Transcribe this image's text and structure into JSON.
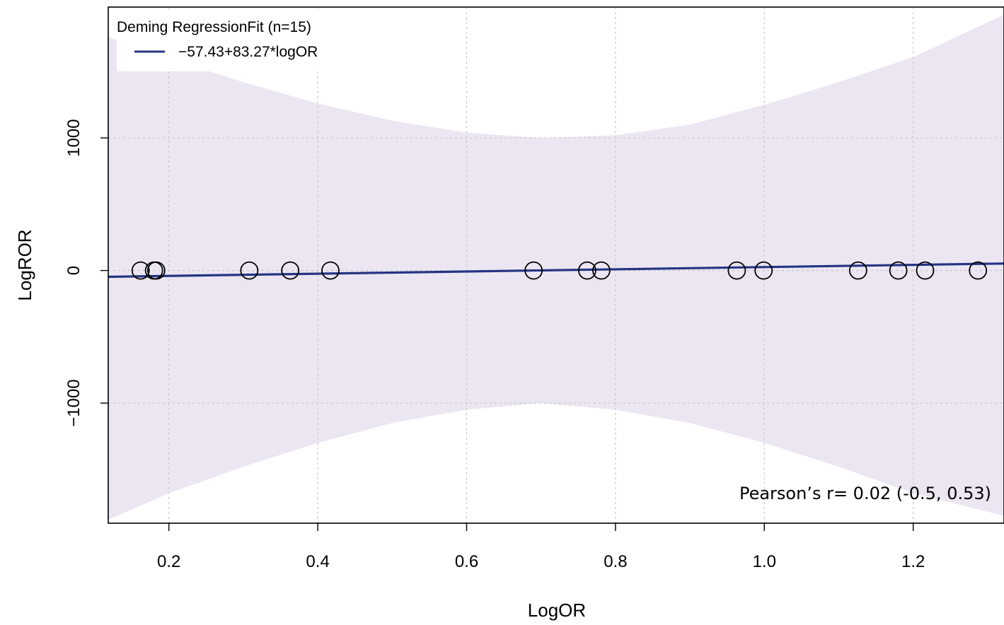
{
  "chart_data": {
    "type": "scatter",
    "xlabel": "LogOR",
    "ylabel": "LogROR",
    "xlim": [
      0.1185,
      1.322
    ],
    "ylim": [
      -1906,
      1987
    ],
    "xticks": [
      0.2,
      0.4,
      0.6,
      0.8,
      1.0,
      1.2
    ],
    "xtick_labels": [
      "0.2",
      "0.4",
      "0.6",
      "0.8",
      "1.0",
      "1.2"
    ],
    "yticks": [
      -1000,
      0,
      1000
    ],
    "ytick_labels": [
      "−1000",
      "0",
      "1000"
    ],
    "grid": true,
    "legend_position": "top-left",
    "legend": {
      "title": "Deming RegressionFit (n=15)",
      "entries": [
        {
          "label": "−57.43+83.27*logOR",
          "color": "#253583"
        }
      ]
    },
    "annotation": "Pearson’s r= 0.02 (-0.5, 0.53)",
    "points": {
      "x": [
        0.162,
        0.18,
        0.183,
        0.308,
        0.363,
        0.417,
        0.69,
        0.762,
        0.781,
        0.963,
        0.999,
        1.126,
        1.18,
        1.216,
        1.287
      ],
      "y": [
        0,
        0,
        0,
        0,
        0,
        0,
        0,
        0,
        0,
        0,
        0,
        0,
        0,
        0,
        0
      ]
    },
    "fit_line": {
      "intercept": -57.43,
      "slope": 83.27
    },
    "confidence_band": {
      "x": [
        0.1185,
        0.2,
        0.3,
        0.4,
        0.5,
        0.6,
        0.7,
        0.8,
        0.9,
        1.0,
        1.1,
        1.2,
        1.322
      ],
      "upper": [
        1760,
        1600,
        1420,
        1260,
        1130,
        1040,
        1000,
        1020,
        1100,
        1250,
        1420,
        1610,
        1930
      ],
      "lower": [
        -1880,
        -1680,
        -1480,
        -1300,
        -1150,
        -1050,
        -1000,
        -1050,
        -1150,
        -1300,
        -1480,
        -1680,
        -1850
      ]
    },
    "colors": {
      "band": "#ebe6f2",
      "line": "#253583",
      "grid": "#c8c8c8",
      "points": "#000000"
    }
  }
}
